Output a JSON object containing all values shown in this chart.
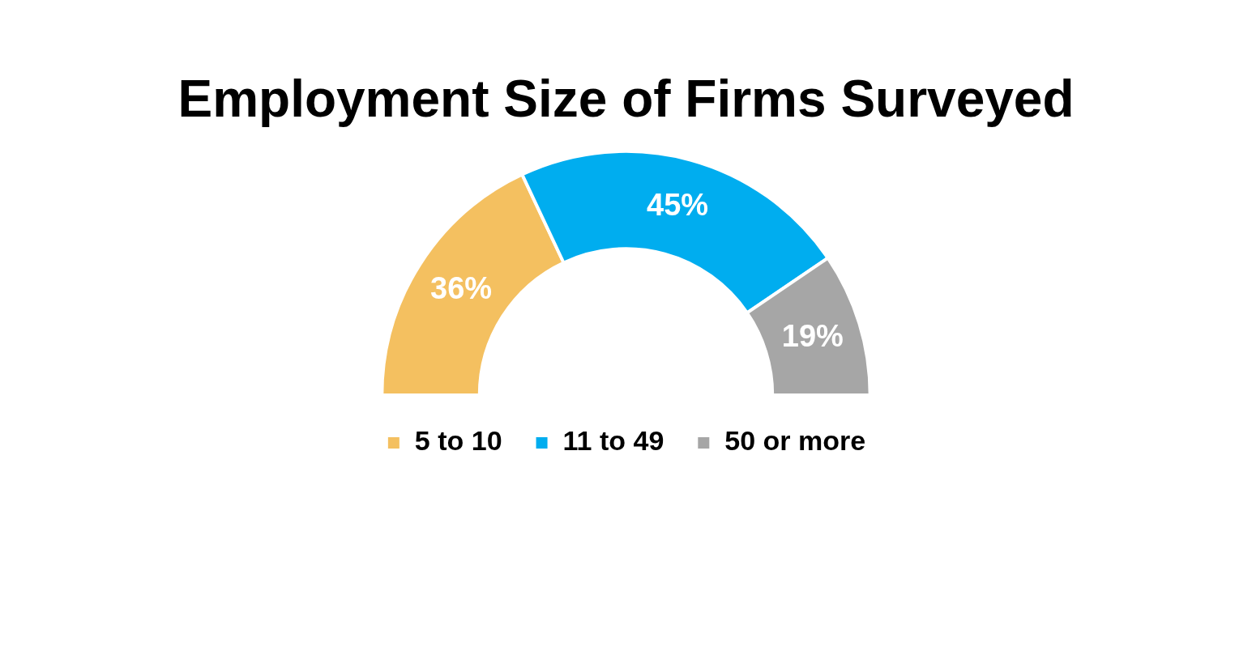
{
  "chart_data": {
    "type": "donut",
    "title": "Employment Size of Firms Surveyed",
    "categories": [
      "5 to 10",
      "11 to 49",
      "50 or more"
    ],
    "values": [
      36,
      45,
      19
    ],
    "colors": [
      "#f4c060",
      "#00adef",
      "#a6a6a6"
    ],
    "value_labels": [
      "36%",
      "45%",
      "19%"
    ],
    "legend": "bottom"
  }
}
